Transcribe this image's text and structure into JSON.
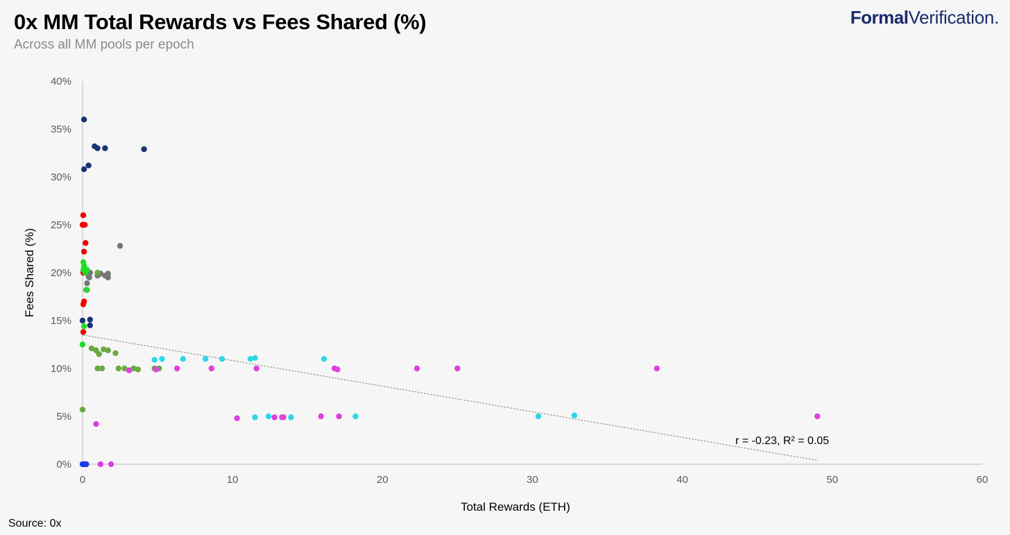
{
  "brand": {
    "bold": "Formal",
    "regular": "Verification."
  },
  "source": "Source: 0x",
  "colors": {
    "navy": "#1a3278",
    "red": "#f00000",
    "gray": "#757575",
    "lime": "#22dd22",
    "olive": "#6aa843",
    "cyan": "#2cd8e6",
    "magenta": "#e040e0",
    "blue": "#1b3de6",
    "trend": "#7f7f7f",
    "axis": "#bfbfbf"
  },
  "chart_data": {
    "type": "scatter",
    "title": "0x MM Total Rewards vs Fees Shared (%)",
    "subtitle": "Across all MM pools per epoch",
    "xlabel": "Total Rewards (ETH)",
    "ylabel": "Fees Shared (%)",
    "xlim": [
      0,
      60
    ],
    "ylim": [
      0,
      40
    ],
    "x_ticks": [
      "0",
      "10",
      "20",
      "30",
      "40",
      "50",
      "60"
    ],
    "y_ticks": [
      "0%",
      "5%",
      "10%",
      "15%",
      "20%",
      "25%",
      "30%",
      "35%",
      "40%"
    ],
    "grid": false,
    "legend": "none",
    "annotation": "r = -0.23, R² = 0.05",
    "trendline": {
      "x": [
        0,
        49
      ],
      "y": [
        13.5,
        0.4
      ]
    },
    "series": [
      {
        "color": "navy",
        "points": [
          [
            0.1,
            36.0
          ],
          [
            0.1,
            30.8
          ],
          [
            0.4,
            31.2
          ],
          [
            0.8,
            33.2
          ],
          [
            1.0,
            33.0
          ],
          [
            1.5,
            33.0
          ],
          [
            4.1,
            32.9
          ],
          [
            0.0,
            15.0
          ],
          [
            0.5,
            15.1
          ],
          [
            0.5,
            14.5
          ]
        ]
      },
      {
        "color": "red",
        "points": [
          [
            0.05,
            26.0
          ],
          [
            0.0,
            25.0
          ],
          [
            0.15,
            25.0
          ],
          [
            0.2,
            23.1
          ],
          [
            0.1,
            22.2
          ],
          [
            0.05,
            20.0
          ],
          [
            0.1,
            17.0
          ],
          [
            0.05,
            16.7
          ],
          [
            0.05,
            13.8
          ]
        ]
      },
      {
        "color": "gray",
        "points": [
          [
            2.5,
            22.8
          ],
          [
            0.4,
            19.6
          ],
          [
            0.5,
            20.0
          ],
          [
            0.45,
            19.5
          ],
          [
            1.0,
            19.7
          ],
          [
            1.2,
            19.9
          ],
          [
            1.5,
            19.7
          ],
          [
            1.7,
            19.9
          ],
          [
            1.7,
            19.5
          ],
          [
            0.3,
            18.9
          ],
          [
            0.25,
            18.2
          ]
        ]
      },
      {
        "color": "lime",
        "points": [
          [
            0.05,
            21.1
          ],
          [
            0.1,
            20.7
          ],
          [
            0.05,
            20.3
          ],
          [
            0.2,
            20.0
          ],
          [
            0.3,
            20.3
          ],
          [
            0.3,
            18.2
          ],
          [
            0.1,
            14.4
          ],
          [
            0.0,
            12.5
          ]
        ]
      },
      {
        "color": "olive",
        "points": [
          [
            1.0,
            20.0
          ],
          [
            0.6,
            12.1
          ],
          [
            0.9,
            11.9
          ],
          [
            1.1,
            11.5
          ],
          [
            1.4,
            12.0
          ],
          [
            1.7,
            11.9
          ],
          [
            2.2,
            11.6
          ],
          [
            1.0,
            10.0
          ],
          [
            1.3,
            10.0
          ],
          [
            2.4,
            10.0
          ],
          [
            2.8,
            10.0
          ],
          [
            3.4,
            10.0
          ],
          [
            3.7,
            9.9
          ],
          [
            4.8,
            10.0
          ],
          [
            5.1,
            10.0
          ],
          [
            0.0,
            5.7
          ]
        ]
      },
      {
        "color": "cyan",
        "points": [
          [
            4.8,
            10.9
          ],
          [
            5.3,
            11.0
          ],
          [
            6.7,
            11.0
          ],
          [
            8.2,
            11.0
          ],
          [
            9.3,
            11.0
          ],
          [
            11.2,
            11.0
          ],
          [
            11.5,
            11.1
          ],
          [
            16.1,
            11.0
          ],
          [
            11.5,
            4.9
          ],
          [
            12.4,
            5.0
          ],
          [
            13.9,
            4.9
          ],
          [
            18.2,
            5.0
          ],
          [
            30.4,
            5.0
          ],
          [
            32.8,
            5.1
          ]
        ]
      },
      {
        "color": "magenta",
        "points": [
          [
            3.1,
            9.8
          ],
          [
            4.9,
            9.9
          ],
          [
            6.3,
            10.0
          ],
          [
            8.6,
            10.0
          ],
          [
            11.6,
            10.0
          ],
          [
            16.8,
            10.0
          ],
          [
            17.0,
            9.9
          ],
          [
            22.3,
            10.0
          ],
          [
            25.0,
            10.0
          ],
          [
            38.3,
            10.0
          ],
          [
            10.3,
            4.8
          ],
          [
            12.8,
            4.9
          ],
          [
            13.3,
            4.9
          ],
          [
            13.4,
            4.9
          ],
          [
            15.9,
            5.0
          ],
          [
            17.1,
            5.0
          ],
          [
            49.0,
            5.0
          ],
          [
            0.9,
            4.2
          ],
          [
            1.2,
            0.0
          ],
          [
            1.9,
            0.0
          ]
        ]
      },
      {
        "color": "blue",
        "points": [
          [
            0.0,
            0.0
          ],
          [
            0.1,
            0.0
          ],
          [
            0.2,
            0.0
          ],
          [
            0.25,
            0.0
          ]
        ]
      }
    ]
  }
}
